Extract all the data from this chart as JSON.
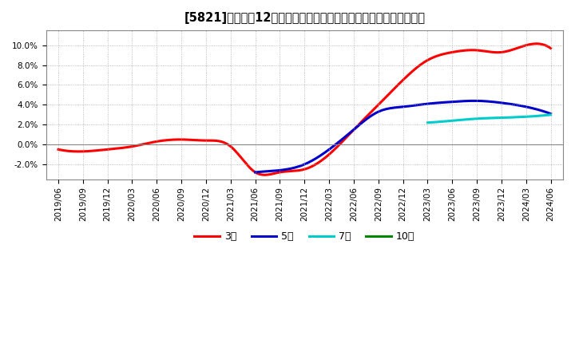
{
  "title": "[5821]　売上高12か月移動合計の対前年同期増減率の平均値の推移",
  "ylim": [
    -0.035,
    0.115
  ],
  "yticks": [
    -0.02,
    0.0,
    0.02,
    0.04,
    0.06,
    0.08,
    0.1
  ],
  "background_color": "#ffffff",
  "grid_color": "#aaaaaa",
  "series": {
    "3year": {
      "color": "#ff0000",
      "label": "3年",
      "x_quarters": [
        "2019/06",
        "2019/09",
        "2019/12",
        "2020/03",
        "2020/06",
        "2020/09",
        "2020/12",
        "2021/03",
        "2021/06",
        "2021/09",
        "2021/12",
        "2022/03",
        "2022/06",
        "2022/09",
        "2022/12",
        "2023/03",
        "2023/06",
        "2023/09",
        "2023/12",
        "2024/03",
        "2024/06"
      ],
      "data": [
        -0.005,
        -0.007,
        -0.005,
        -0.002,
        0.003,
        0.005,
        0.004,
        -0.002,
        -0.028,
        -0.028,
        -0.025,
        -0.01,
        0.015,
        0.04,
        0.065,
        0.085,
        0.093,
        0.095,
        0.093,
        0.1,
        0.097
      ]
    },
    "5year": {
      "color": "#0000cc",
      "label": "5年",
      "x_quarters": [
        "2021/06",
        "2021/09",
        "2021/12",
        "2022/03",
        "2022/06",
        "2022/09",
        "2022/12",
        "2023/03",
        "2023/06",
        "2023/09",
        "2023/12",
        "2024/03",
        "2024/06"
      ],
      "data": [
        -0.028,
        -0.026,
        -0.02,
        -0.005,
        0.015,
        0.033,
        0.038,
        0.041,
        0.043,
        0.044,
        0.042,
        0.038,
        0.031
      ]
    },
    "7year": {
      "color": "#00cccc",
      "label": "7年",
      "x_quarters": [
        "2023/03",
        "2023/06",
        "2023/09",
        "2023/12",
        "2024/03",
        "2024/06"
      ],
      "data": [
        0.022,
        0.024,
        0.026,
        0.027,
        0.028,
        0.03
      ]
    },
    "10year": {
      "color": "#008800",
      "label": "10年",
      "x_quarters": [],
      "data": []
    }
  },
  "x_labels": [
    "2019/06",
    "2019/09",
    "2019/12",
    "2020/03",
    "2020/06",
    "2020/09",
    "2020/12",
    "2021/03",
    "2021/06",
    "2021/09",
    "2021/12",
    "2022/03",
    "2022/06",
    "2022/09",
    "2022/12",
    "2023/03",
    "2023/06",
    "2023/09",
    "2023/12",
    "2024/03",
    "2024/06"
  ],
  "title_fontsize": 10.5,
  "tick_fontsize": 7.5,
  "legend_fontsize": 9
}
